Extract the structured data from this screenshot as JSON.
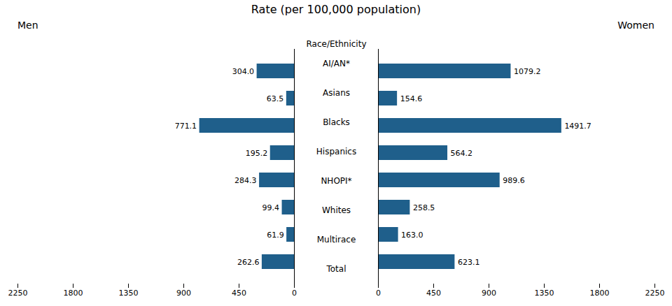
{
  "chart_data": {
    "type": "bar",
    "orientation": "horizontal",
    "title": "Rate (per 100,000 population)",
    "ylabel": "Race/Ethnicity",
    "categories": [
      "AI/AN*",
      "Asians",
      "Blacks",
      "Hispanics",
      "NHOPI*",
      "Whites",
      "Multirace",
      "Total"
    ],
    "color": "#1F5F8B",
    "series": [
      {
        "name": "Men",
        "values": [
          304.0,
          63.5,
          771.1,
          195.2,
          284.3,
          99.4,
          61.9,
          262.6
        ],
        "value_labels": [
          "304.0",
          "63.5",
          "771.1",
          "195.2",
          "284.3",
          "99.4",
          "61.9",
          "262.6"
        ]
      },
      {
        "name": "Women",
        "values": [
          1079.2,
          154.6,
          1491.7,
          564.2,
          989.6,
          258.5,
          163.0,
          623.1
        ],
        "value_labels": [
          "1079.2",
          "154.6",
          "1491.7",
          "564.2",
          "989.6",
          "258.5",
          "163.0",
          "623.1"
        ]
      }
    ],
    "xlim": [
      0,
      2250
    ],
    "xticks": [
      0,
      450,
      900,
      1350,
      1800,
      2250
    ],
    "data_labels": true,
    "grid": false
  }
}
